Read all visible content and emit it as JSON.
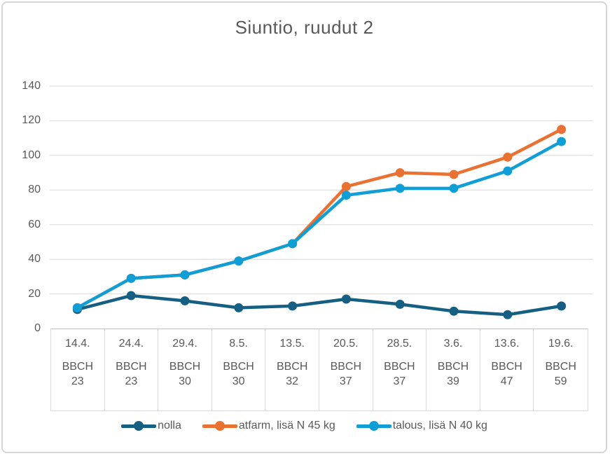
{
  "chart": {
    "title": "Siuntio, ruudut 2"
  },
  "chart_data": {
    "type": "line",
    "title": "Siuntio, ruudut 2",
    "categories": [
      "14.4.",
      "24.4.",
      "29.4.",
      "8.5.",
      "13.5.",
      "20.5.",
      "28.5.",
      "3.6.",
      "13.6.",
      "19.6."
    ],
    "x_sublabel_prefix": "BBCH",
    "bbch_values": [
      23,
      23,
      30,
      30,
      32,
      37,
      37,
      39,
      47,
      59
    ],
    "series": [
      {
        "name": "nolla",
        "color": "#156082",
        "values": [
          11,
          19,
          16,
          12,
          13,
          17,
          14,
          10,
          8,
          13
        ]
      },
      {
        "name": "atfarm, lisä N 45 kg",
        "color": "#E97132",
        "values": [
          12,
          29,
          31,
          39,
          49,
          82,
          90,
          89,
          99,
          115
        ]
      },
      {
        "name": "talous, lisä N 40 kg",
        "color": "#0F9ED5",
        "values": [
          12,
          29,
          31,
          39,
          49,
          77,
          81,
          81,
          91,
          108
        ]
      }
    ],
    "ylim": [
      0,
      140
    ],
    "y_ticks": [
      0,
      20,
      40,
      60,
      80,
      100,
      120,
      140
    ],
    "grid": true,
    "legend_position": "bottom"
  },
  "style_colors": {
    "text": "#595959",
    "gridline": "#D9D9D9",
    "axis_line": "#BFBFBF",
    "frame_border": "#D6D6D6",
    "background": "#FFFFFF"
  }
}
